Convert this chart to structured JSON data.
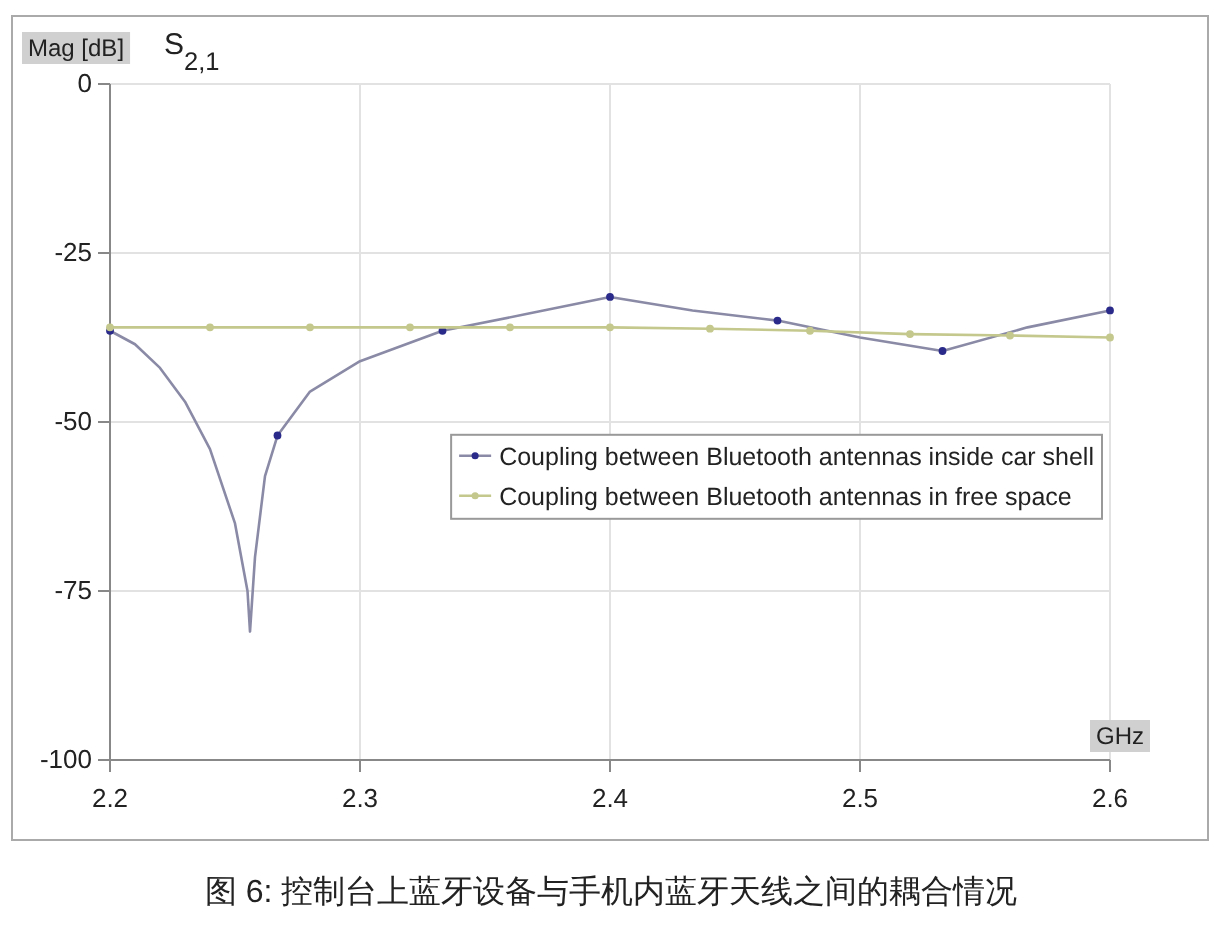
{
  "chart_data": {
    "type": "line",
    "title": "S$_{2,1}$",
    "ylabel": "Mag [dB]",
    "xlabel": "GHz",
    "annotations": [
      "图 6: 控制台上蓝牙设备与手机内蓝牙天线之间的耦合情况"
    ],
    "xlim": [
      2.2,
      2.6
    ],
    "xticks": [
      2.2,
      2.3,
      2.4,
      2.5,
      2.6
    ],
    "ylim": [
      -100,
      0
    ],
    "yticks": [
      -100,
      -75,
      -50,
      -25,
      0
    ],
    "grid": true,
    "legend": "right",
    "series": [
      {
        "name": "Coupling between Bluetooth antennas inside car shell",
        "color": "#8a8aa6",
        "marker": "none",
        "x": [
          2.2,
          2.21,
          2.22,
          2.23,
          2.24,
          2.25,
          2.255,
          2.256,
          2.258,
          2.262,
          2.267,
          2.28,
          2.3,
          2.333,
          2.367,
          2.4,
          2.433,
          2.467,
          2.5,
          2.533,
          2.567,
          2.6
        ],
        "values": [
          -36.5,
          -38.5,
          -42,
          -47,
          -54,
          -65,
          -75,
          -81,
          -70,
          -58,
          -52,
          -45.5,
          -41,
          -36.5,
          -34,
          -31.5,
          -33.5,
          -35,
          -37.5,
          -39.5,
          -36,
          -33.5
        ]
      },
      {
        "type": "scatter",
        "color": "#2a2a8a",
        "marker": "circle",
        "x": [
          2.2,
          2.267,
          2.333,
          2.4,
          2.467,
          2.533,
          2.6
        ],
        "values": [
          -36.5,
          -52,
          -36.5,
          -31.5,
          -35,
          -39.5,
          -33.5
        ]
      },
      {
        "name": "Coupling between Bluetooth antennas in free space",
        "color": "#c4c88c",
        "marker": "circle",
        "x": [
          2.2,
          2.24,
          2.28,
          2.32,
          2.36,
          2.4,
          2.44,
          2.48,
          2.52,
          2.56,
          2.6
        ],
        "values": [
          -36,
          -36,
          -36,
          -36,
          -36,
          -36,
          -36.2,
          -36.5,
          -37,
          -37.2,
          -37.5
        ]
      }
    ]
  }
}
